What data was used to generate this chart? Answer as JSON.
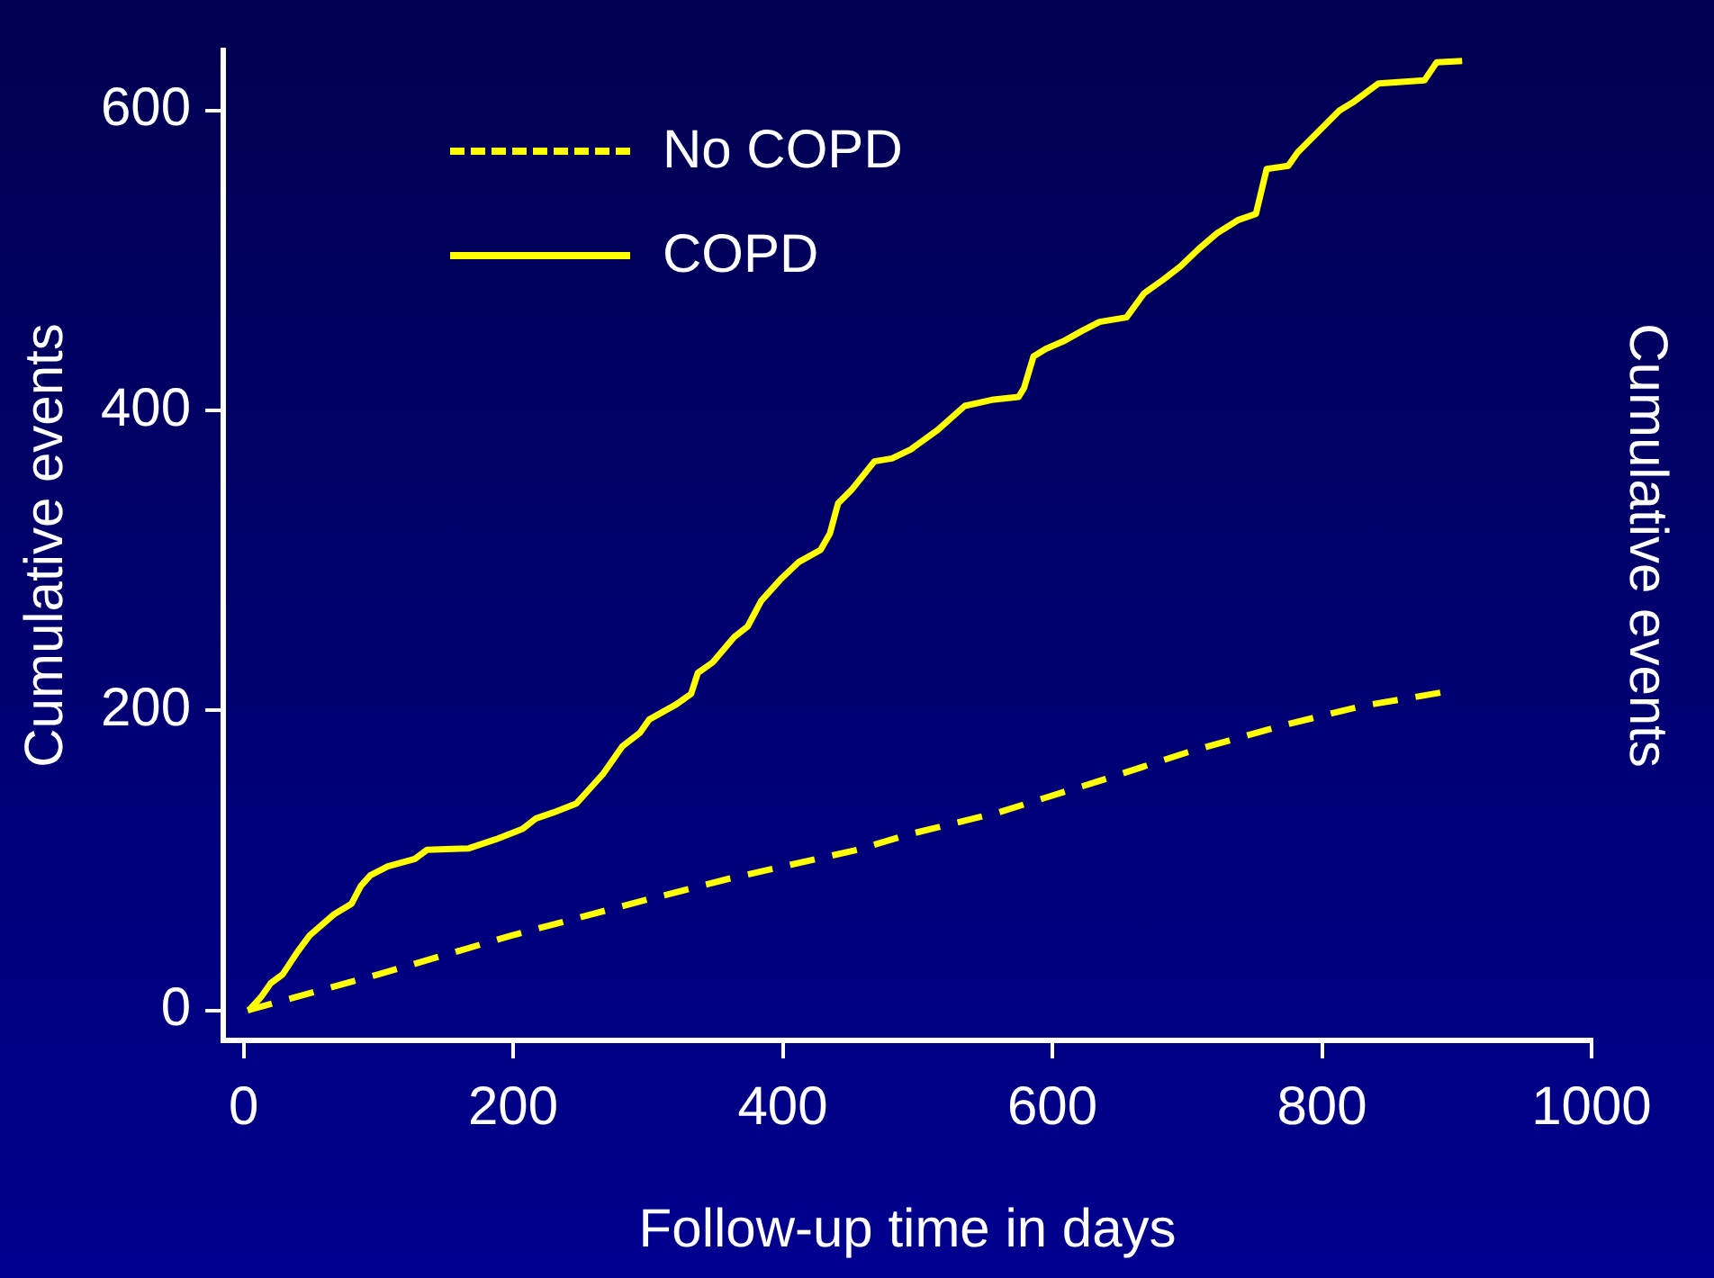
{
  "chart_data": {
    "type": "line",
    "xlabel": "Follow-up time in days",
    "ylabel": "Cumulative events",
    "y2label": "Cumulative events",
    "xlim": [
      -15,
      1000
    ],
    "xticks": [
      0,
      200,
      400,
      600,
      800,
      1000
    ],
    "ylim": [
      -20,
      640
    ],
    "yticks": [
      0,
      200,
      400,
      600
    ],
    "grid": false,
    "legend": "top left",
    "marker": "none",
    "series": [
      {
        "name": "No COPD",
        "color": "#ffff00",
        "line_style": "dashed",
        "x": [
          3,
          100,
          199,
          300,
          361,
          455,
          492,
          560,
          635,
          700,
          771,
          830,
          889
        ],
        "values": [
          0,
          24,
          50,
          74,
          88,
          107,
          117,
          132,
          153,
          172,
          190,
          203,
          212
        ]
      },
      {
        "name": "COPD",
        "color": "#ffff00",
        "line_style": "solid",
        "x": [
          4,
          13,
          20,
          29,
          40,
          49,
          67,
          80,
          87,
          94,
          107,
          127,
          136,
          167,
          187,
          207,
          217,
          230,
          247,
          257,
          267,
          281,
          294,
          301,
          321,
          332,
          337,
          348,
          364,
          374,
          384,
          398,
          412,
          428,
          435,
          441,
          451,
          468,
          481,
          495,
          515,
          535,
          555,
          575,
          579,
          586,
          595,
          608,
          622,
          635,
          655,
          668,
          682,
          695,
          709,
          722,
          738,
          751,
          759,
          775,
          782,
          802,
          813,
          824,
          842,
          876,
          885,
          904
        ],
        "values": [
          0,
          9,
          18,
          24,
          39,
          50,
          64,
          71,
          83,
          90,
          96,
          101,
          107,
          108,
          114,
          121,
          128,
          132,
          138,
          148,
          158,
          176,
          185,
          194,
          204,
          211,
          225,
          232,
          249,
          256,
          273,
          287,
          299,
          307,
          318,
          338,
          347,
          366,
          368,
          374,
          387,
          403,
          407,
          409,
          415,
          436,
          441,
          446,
          453,
          459,
          462,
          478,
          487,
          496,
          508,
          518,
          527,
          531,
          561,
          563,
          572,
          590,
          600,
          606,
          618,
          620,
          632,
          633
        ]
      }
    ]
  }
}
